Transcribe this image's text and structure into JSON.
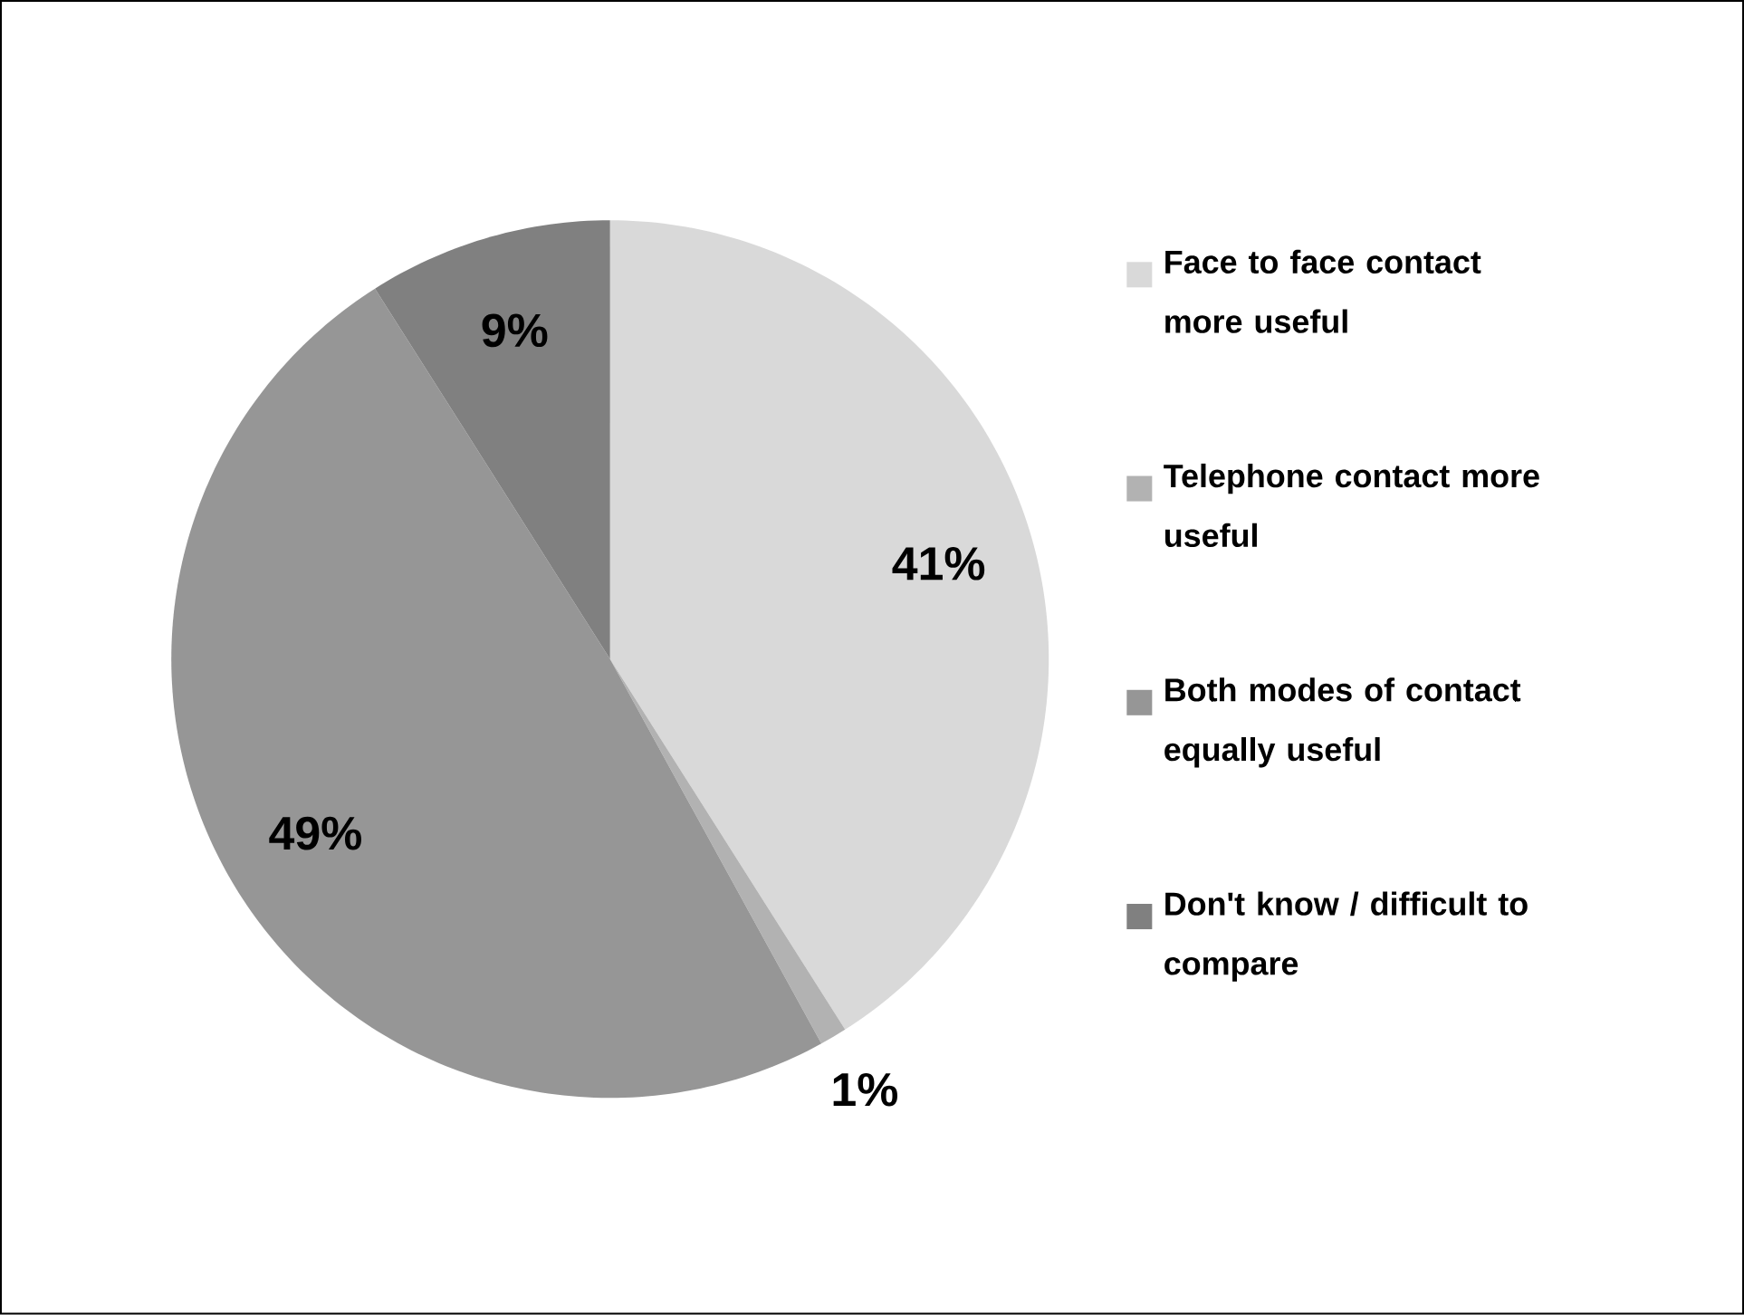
{
  "chart_data": {
    "type": "pie",
    "categories": [
      "Face to face contact more useful",
      "Telephone contact more useful",
      "Both modes of contact equally useful",
      "Don't know / difficult to compare"
    ],
    "values": [
      41,
      1,
      49,
      9
    ],
    "value_labels": [
      "41%",
      "1%",
      "49%",
      "9%"
    ],
    "colors": [
      "#d9d9d9",
      "#b2b2b2",
      "#969696",
      "#808080"
    ],
    "legend": "right"
  }
}
